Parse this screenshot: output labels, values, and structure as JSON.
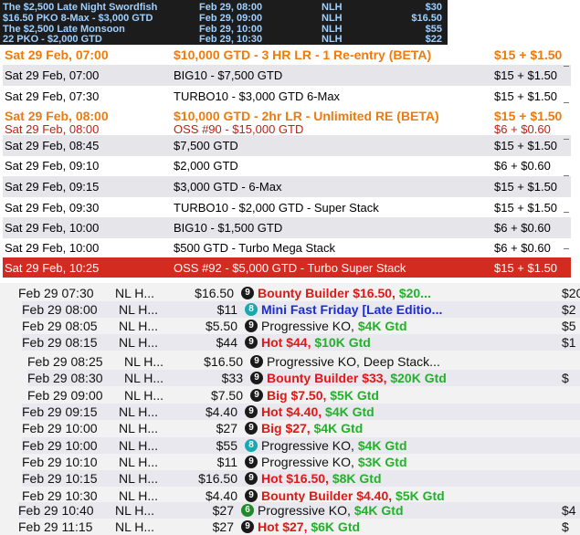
{
  "top_strip": {
    "rows": [
      {
        "name": "The $2,500 Late Night Swordfish",
        "date": "Feb 29, 08:00",
        "game": "NLH",
        "buyin": "$30"
      },
      {
        "name": "$16.50 PKO 8-Max - $3,000 GTD",
        "date": "Feb 29, 09:00",
        "game": "NLH",
        "buyin": "$16.50"
      },
      {
        "name": "The $2,500 Late Monsoon",
        "date": "Feb 29, 10:00",
        "game": "NLH",
        "buyin": "$55"
      },
      {
        "name": "22 PKO - $2,000 GTD",
        "date": "Feb 29, 10:30",
        "game": "NLH",
        "buyin": "$22"
      }
    ]
  },
  "schedule": {
    "rows": [
      {
        "day": "Sat",
        "date": "29 Feb, 07:00",
        "name": "$10,000 GTD - 3 HR LR - 1 Re-entry (BETA)",
        "buyin": "$15 + $1.50",
        "style": "hl"
      },
      {
        "day": "Sat",
        "date": "29 Feb, 07:00",
        "name": "BIG10 - $7,500 GTD",
        "buyin": "$15 + $1.50",
        "style": "alt"
      },
      {
        "day": "Sat",
        "date": "29 Feb, 07:30",
        "name": "TURBO10 - $3,000 GTD 6-Max",
        "buyin": "$15 + $1.50",
        "style": ""
      },
      {
        "day": "Sat",
        "date": "29 Feb, 08:00",
        "name": "$10,000 GTD - 2hr LR - Unlimited RE (BETA)",
        "buyin": "$15 + $1.50",
        "style": "hl"
      },
      {
        "day": "Sat",
        "date": "29 Feb, 08:00",
        "name": "OSS #90 - $15,000 GTD",
        "buyin": "$6 + $0.60",
        "style": "red"
      },
      {
        "day": "Sat",
        "date": "29 Feb, 08:45",
        "name": "$7,500 GTD",
        "buyin": "$15 + $1.50",
        "style": "alt"
      },
      {
        "day": "Sat",
        "date": "29 Feb, 09:10",
        "name": "$2,000 GTD",
        "buyin": "$6 + $0.60",
        "style": ""
      },
      {
        "day": "Sat",
        "date": "29 Feb, 09:15",
        "name": "$3,000 GTD - 6-Max",
        "buyin": "$15 + $1.50",
        "style": "alt"
      },
      {
        "day": "Sat",
        "date": "29 Feb, 09:30",
        "name": "TURBO10 - $2,000 GTD - Super Stack",
        "buyin": "$15 + $1.50",
        "style": ""
      },
      {
        "day": "Sat",
        "date": "29 Feb, 10:00",
        "name": "BIG10 - $1,500 GTD",
        "buyin": "$6 + $0.60",
        "style": "alt"
      },
      {
        "day": "Sat",
        "date": "29 Feb, 10:00",
        "name": "$500 GTD - Turbo Mega Stack",
        "buyin": "$6 + $0.60",
        "style": ""
      },
      {
        "day": "Sat",
        "date": "29 Feb, 10:25",
        "name": "OSS #92 - $5,000 GTD - Turbo Super Stack",
        "buyin": "$15 + $1.50",
        "style": "sel"
      }
    ]
  },
  "lobby": {
    "rows": [
      {
        "date": "Feb 29  07:30",
        "game": "NL H...",
        "buyin": "$16.50",
        "players": "9",
        "badge": "#1a1a1a",
        "parts": [
          {
            "t": "Bounty Builder $16.50, ",
            "c": "red"
          },
          {
            "t": "$20...",
            "c": "green"
          }
        ],
        "extra": "$20"
      },
      {
        "date": "Feb 29  08:00",
        "game": "NL H...",
        "buyin": "$11",
        "players": "8",
        "badge": "#17a8b0",
        "parts": [
          {
            "t": "Mini Fast Friday [Late Editio...",
            "c": "blue"
          }
        ],
        "extra": "$2"
      },
      {
        "date": "Feb 29  08:05",
        "game": "NL H...",
        "buyin": "$5.50",
        "players": "9",
        "badge": "#1a1a1a",
        "parts": [
          {
            "t": "Progressive KO, ",
            "c": "black"
          },
          {
            "t": "$4K Gtd",
            "c": "green"
          }
        ],
        "extra": "$5"
      },
      {
        "date": "Feb 29  08:15",
        "game": "NL H...",
        "buyin": "$44",
        "players": "9",
        "badge": "#1a1a1a",
        "parts": [
          {
            "t": "Hot $44, ",
            "c": "red"
          },
          {
            "t": "$10K Gtd",
            "c": "green"
          }
        ],
        "extra": "$1"
      },
      {
        "date": "Feb 29  08:25",
        "game": "NL H...",
        "buyin": "$16.50",
        "players": "9",
        "badge": "#1a1a1a",
        "parts": [
          {
            "t": "Progressive KO, Deep Stack...",
            "c": "black"
          }
        ],
        "extra": ""
      },
      {
        "date": "Feb 29  08:30",
        "game": "NL H...",
        "buyin": "$33",
        "players": "9",
        "badge": "#1a1a1a",
        "parts": [
          {
            "t": "Bounty Builder $33, ",
            "c": "red"
          },
          {
            "t": "$20K Gtd",
            "c": "green"
          }
        ],
        "extra": "$"
      },
      {
        "date": "Feb 29  09:00",
        "game": "NL H...",
        "buyin": "$7.50",
        "players": "9",
        "badge": "#1a1a1a",
        "parts": [
          {
            "t": "Big $7.50, ",
            "c": "red"
          },
          {
            "t": "$5K Gtd",
            "c": "green"
          }
        ],
        "extra": ""
      },
      {
        "date": "Feb 29  09:15",
        "game": "NL H...",
        "buyin": "$4.40",
        "players": "9",
        "badge": "#1a1a1a",
        "parts": [
          {
            "t": "Hot $4.40, ",
            "c": "red"
          },
          {
            "t": "$4K Gtd",
            "c": "green"
          }
        ],
        "extra": ""
      },
      {
        "date": "Feb 29  10:00",
        "game": "NL H...",
        "buyin": "$27",
        "players": "9",
        "badge": "#1a1a1a",
        "parts": [
          {
            "t": "Big $27, ",
            "c": "red"
          },
          {
            "t": "$4K Gtd",
            "c": "green"
          }
        ],
        "extra": ""
      },
      {
        "date": "Feb 29  10:00",
        "game": "NL H...",
        "buyin": "$55",
        "players": "8",
        "badge": "#17a8b0",
        "parts": [
          {
            "t": "Progressive KO, ",
            "c": "black"
          },
          {
            "t": "$4K Gtd",
            "c": "green"
          }
        ],
        "extra": ""
      },
      {
        "date": "Feb 29  10:10",
        "game": "NL H...",
        "buyin": "$11",
        "players": "9",
        "badge": "#1a1a1a",
        "parts": [
          {
            "t": "Progressive KO, ",
            "c": "black"
          },
          {
            "t": "$3K Gtd",
            "c": "green"
          }
        ],
        "extra": ""
      },
      {
        "date": "Feb 29  10:15",
        "game": "NL H...",
        "buyin": "$16.50",
        "players": "9",
        "badge": "#1a1a1a",
        "parts": [
          {
            "t": "Hot $16.50, ",
            "c": "red"
          },
          {
            "t": "$8K Gtd",
            "c": "green"
          }
        ],
        "extra": ""
      },
      {
        "date": "Feb 29  10:30",
        "game": "NL H...",
        "buyin": "$4.40",
        "players": "9",
        "badge": "#1a1a1a",
        "parts": [
          {
            "t": "Bounty Builder $4.40, ",
            "c": "red"
          },
          {
            "t": "$5K Gtd",
            "c": "green"
          }
        ],
        "extra": ""
      },
      {
        "date": "Feb 29  10:40",
        "game": "NL H...",
        "buyin": "$27",
        "players": "6",
        "badge": "#1f8a2a",
        "parts": [
          {
            "t": "Progressive KO, ",
            "c": "black"
          },
          {
            "t": "$4K Gtd",
            "c": "green"
          }
        ],
        "extra": "$4"
      },
      {
        "date": "Feb 29  11:15",
        "game": "NL H...",
        "buyin": "$27",
        "players": "9",
        "badge": "#1a1a1a",
        "parts": [
          {
            "t": "Hot $27, ",
            "c": "red"
          },
          {
            "t": "$6K Gtd",
            "c": "green"
          }
        ],
        "extra": "$"
      }
    ]
  }
}
